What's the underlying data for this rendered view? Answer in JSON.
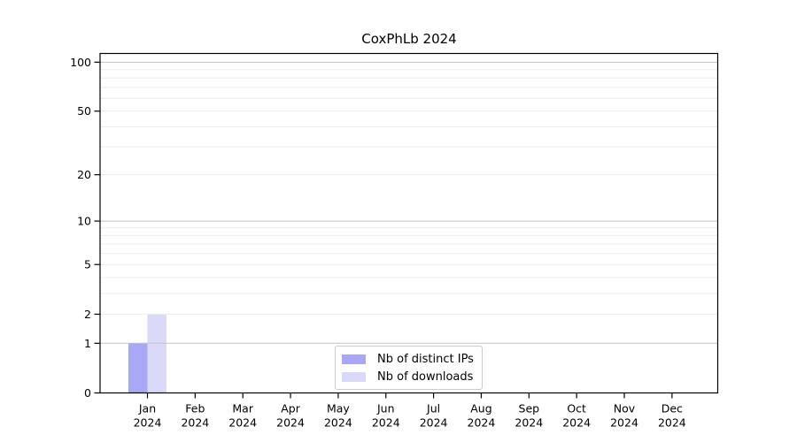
{
  "chart_data": {
    "type": "bar",
    "title": "CoxPhLb 2024",
    "xlabel": "",
    "ylabel": "",
    "yscale": "log1p",
    "ylim": [
      0,
      113
    ],
    "yticks": [
      0,
      1,
      2,
      5,
      10,
      20,
      50,
      100
    ],
    "gridlines": {
      "minor": [
        2,
        3,
        4,
        5,
        6,
        7,
        8,
        9,
        20,
        30,
        40,
        50,
        60,
        70,
        80,
        90
      ],
      "major": [
        1,
        10,
        100
      ]
    },
    "grid": true,
    "legend_position": "inside-bottom-center",
    "categories": [
      {
        "month": "Jan",
        "year": "2024"
      },
      {
        "month": "Feb",
        "year": "2024"
      },
      {
        "month": "Mar",
        "year": "2024"
      },
      {
        "month": "Apr",
        "year": "2024"
      },
      {
        "month": "May",
        "year": "2024"
      },
      {
        "month": "Jun",
        "year": "2024"
      },
      {
        "month": "Jul",
        "year": "2024"
      },
      {
        "month": "Aug",
        "year": "2024"
      },
      {
        "month": "Sep",
        "year": "2024"
      },
      {
        "month": "Oct",
        "year": "2024"
      },
      {
        "month": "Nov",
        "year": "2024"
      },
      {
        "month": "Dec",
        "year": "2024"
      }
    ],
    "series": [
      {
        "name": "Nb of distinct IPs",
        "color": "#a8a8f4",
        "values": [
          1,
          0,
          0,
          0,
          0,
          0,
          0,
          0,
          0,
          0,
          0,
          0
        ]
      },
      {
        "name": "Nb of downloads",
        "color": "#dadaf8",
        "values": [
          2,
          0,
          0,
          0,
          0,
          0,
          0,
          0,
          0,
          0,
          0,
          0
        ]
      }
    ]
  },
  "colors": {
    "background": "#ffffff",
    "minor_grid": "#ececec",
    "major_grid": "#c3c3c3",
    "axis": "#000000",
    "text": "#000000",
    "legend_border": "#cccccc"
  }
}
